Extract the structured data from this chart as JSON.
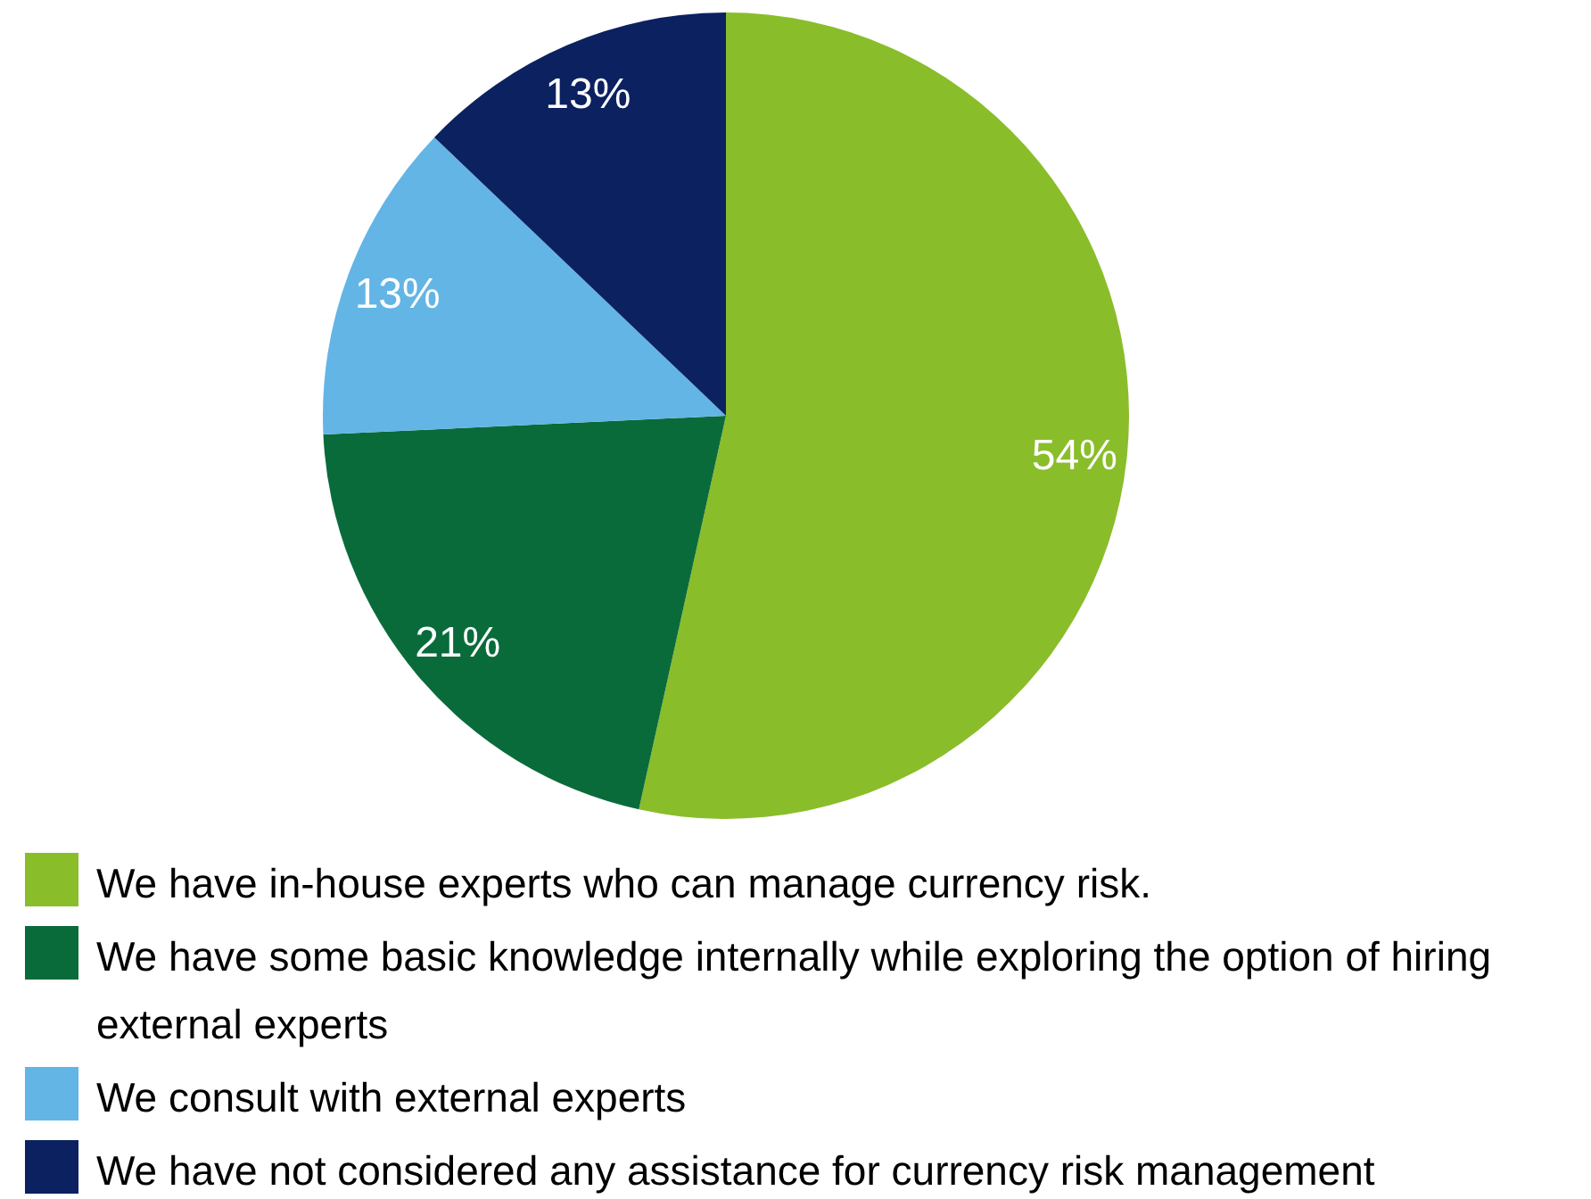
{
  "chart_data": {
    "type": "pie",
    "categories": [
      "We have in-house experts who can manage currency risk.",
      "We have some basic knowledge internally while exploring the option of hiring external experts",
      "We consult with external experts",
      "We have not considered any assistance for currency risk management"
    ],
    "values": [
      54,
      21,
      13,
      13
    ],
    "value_labels": [
      "54%",
      "21%",
      "13%",
      "13%"
    ],
    "colors": [
      "#8abd2a",
      "#0a6b3a",
      "#63b5e5",
      "#0b2160"
    ],
    "legend": "bottom"
  }
}
